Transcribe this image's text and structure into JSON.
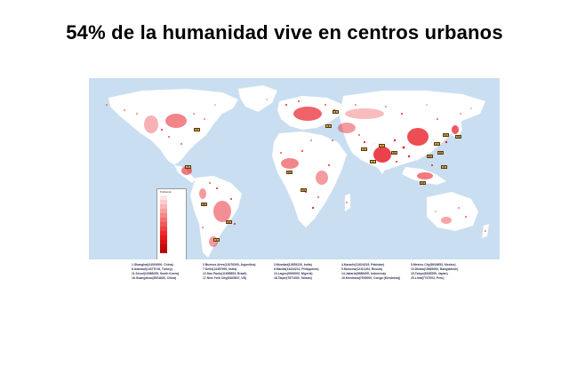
{
  "slide": {
    "title": "54% de la humanidad vive en centros urbanos"
  },
  "map": {
    "ocean_color": "#c9def0",
    "land_color": "#ffffff",
    "density_color": "#e8202a",
    "legend": {
      "title": "Población",
      "levels": [
        "",
        "",
        "",
        "",
        "",
        "",
        "",
        "",
        "",
        "",
        "",
        "",
        ""
      ]
    },
    "city_tags": [
      "1",
      "2",
      "3",
      "4",
      "5",
      "6",
      "7",
      "8",
      "9",
      "10",
      "11",
      "12",
      "13",
      "14",
      "15",
      "16",
      "17",
      "18",
      "19",
      "20"
    ],
    "city_list": [
      "1.Shanghai(24000000, China)",
      "6.Istanbul(14377018, Turkey)",
      "11.Seoul(10388055, South Korea)",
      "16.Guangzhou(8524826, China)",
      "2.Buenos Aires(13076300, Argentina)",
      "7.Delhi(13457990, India)",
      "12.Sao Paulo(11895893, Brazil)",
      "17.New York City(8405837, US)",
      "3.Mumbai(12655220, India)",
      "8.Manila(14434211, Philippines)",
      "13.Lagos(9000000, Nigeria)",
      "18.Taipei(7871900, Taiwan)",
      "4.Karachi(11624219, Pakistan)",
      "9.Moscow(12111194, Russia)",
      "14.Jakarta(9988495, Indonesia)",
      "19.Kinshasa(7500000, Congo (Kinshasa))",
      "5.Mexico City(8918653, Mexico)",
      "10.Dhaka(15669000, Bangladesh)",
      "15.Tokyo(8336599, Japan)",
      "20.Lima(7737002, Peru)"
    ]
  }
}
